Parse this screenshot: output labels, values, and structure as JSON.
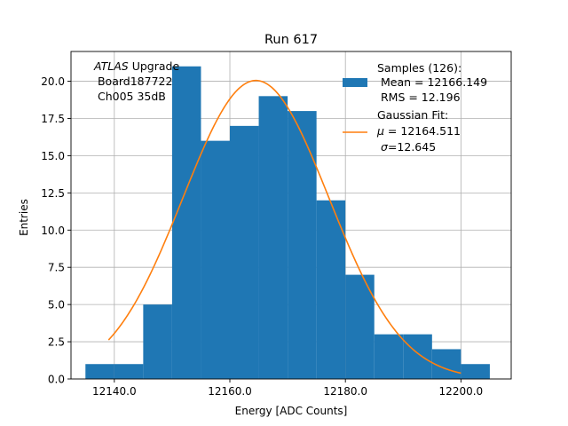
{
  "chart_data": {
    "type": "bar",
    "title": "Run 617",
    "xlabel": "Energy [ADC Counts]",
    "ylabel": "Entries",
    "xlim": [
      12132.5,
      12208.7
    ],
    "ylim": [
      0,
      22
    ],
    "grid": true,
    "legend_position": "top-right",
    "x_ticks": [
      12140.0,
      12160.0,
      12180.0,
      12200.0
    ],
    "x_tick_labels": [
      "12140.0",
      "12160.0",
      "12180.0",
      "12200.0"
    ],
    "y_ticks": [
      0,
      2.5,
      5,
      7.5,
      10,
      12.5,
      15,
      17.5,
      20
    ],
    "y_tick_labels": [
      "0.0",
      "2.5",
      "5.0",
      "7.5",
      "10.0",
      "12.5",
      "15.0",
      "17.5",
      "20.0"
    ],
    "histogram": {
      "bin_edges": [
        12135,
        12140,
        12145,
        12150,
        12155,
        12160,
        12165,
        12170,
        12175,
        12180,
        12185,
        12190,
        12195,
        12200,
        12205
      ],
      "counts": [
        1,
        1,
        5,
        21,
        16,
        17,
        19,
        18,
        12,
        7,
        3,
        3,
        2,
        1
      ],
      "color": "#1f77b4"
    },
    "gaussian_fit": {
      "mu": 12164.511,
      "sigma": 12.645,
      "amplitude": 20.05,
      "x_range": [
        12139.0,
        12200.0
      ],
      "color": "#ff7f0e"
    },
    "annotation": {
      "line1_italic": "ATLAS",
      "line1_rest": " Upgrade",
      "line2": " Board187722",
      "line3": " Ch005 35dB"
    },
    "legend": {
      "samples_lines": [
        "Samples (126):",
        " Mean = 12166.149",
        " RMS = 12.196"
      ],
      "fit_title": "Gaussian Fit:",
      "fit_mu_symbol": "μ",
      "fit_mu_rest": " = 12164.511",
      "fit_sigma_symbol": "σ",
      "fit_sigma_rest": "=12.645"
    }
  }
}
